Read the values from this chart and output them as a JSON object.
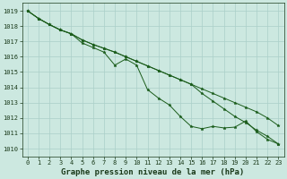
{
  "title": "Graphe pression niveau de la mer (hPa)",
  "x_ticks": [
    0,
    1,
    2,
    3,
    4,
    5,
    6,
    7,
    8,
    9,
    10,
    11,
    12,
    13,
    14,
    15,
    16,
    17,
    18,
    19,
    20,
    21,
    22,
    23
  ],
  "y_ticks": [
    1010,
    1011,
    1012,
    1013,
    1014,
    1015,
    1016,
    1017,
    1018,
    1019
  ],
  "ylim": [
    1009.5,
    1019.5
  ],
  "xlim": [
    -0.5,
    23.5
  ],
  "line_upper": [
    1019.0,
    1018.5,
    1018.1,
    1017.75,
    1017.5,
    1017.1,
    1016.8,
    1016.55,
    1016.3,
    1016.0,
    1015.7,
    1015.4,
    1015.1,
    1014.8,
    1014.5,
    1014.2,
    1013.9,
    1013.6,
    1013.3,
    1013.0,
    1012.7,
    1012.4,
    1012.0,
    1011.5
  ],
  "line_lower": [
    1019.0,
    1018.5,
    1018.1,
    1017.75,
    1017.5,
    1017.1,
    1016.8,
    1016.55,
    1016.3,
    1016.0,
    1015.7,
    1015.4,
    1015.1,
    1014.8,
    1014.5,
    1014.2,
    1013.6,
    1013.1,
    1012.6,
    1012.1,
    1011.7,
    1011.2,
    1010.8,
    1010.3
  ],
  "line_measured": [
    1019.0,
    1018.5,
    1018.1,
    1017.75,
    1017.5,
    1016.9,
    1016.6,
    1016.3,
    1015.45,
    1015.85,
    1015.45,
    1013.85,
    1013.3,
    1012.85,
    1012.1,
    1011.45,
    1011.3,
    1011.45,
    1011.35,
    1011.4,
    1011.8,
    1011.1,
    1010.6,
    1010.3
  ],
  "line_color": "#1a5c1a",
  "bg_color": "#cce8e0",
  "grid_color": "#aacfc8",
  "axis_color": "#1a3a1a",
  "title_fontsize": 6.5,
  "tick_fontsize": 5.0,
  "marker": "*",
  "linewidth": 0.7,
  "markersize": 2.5
}
